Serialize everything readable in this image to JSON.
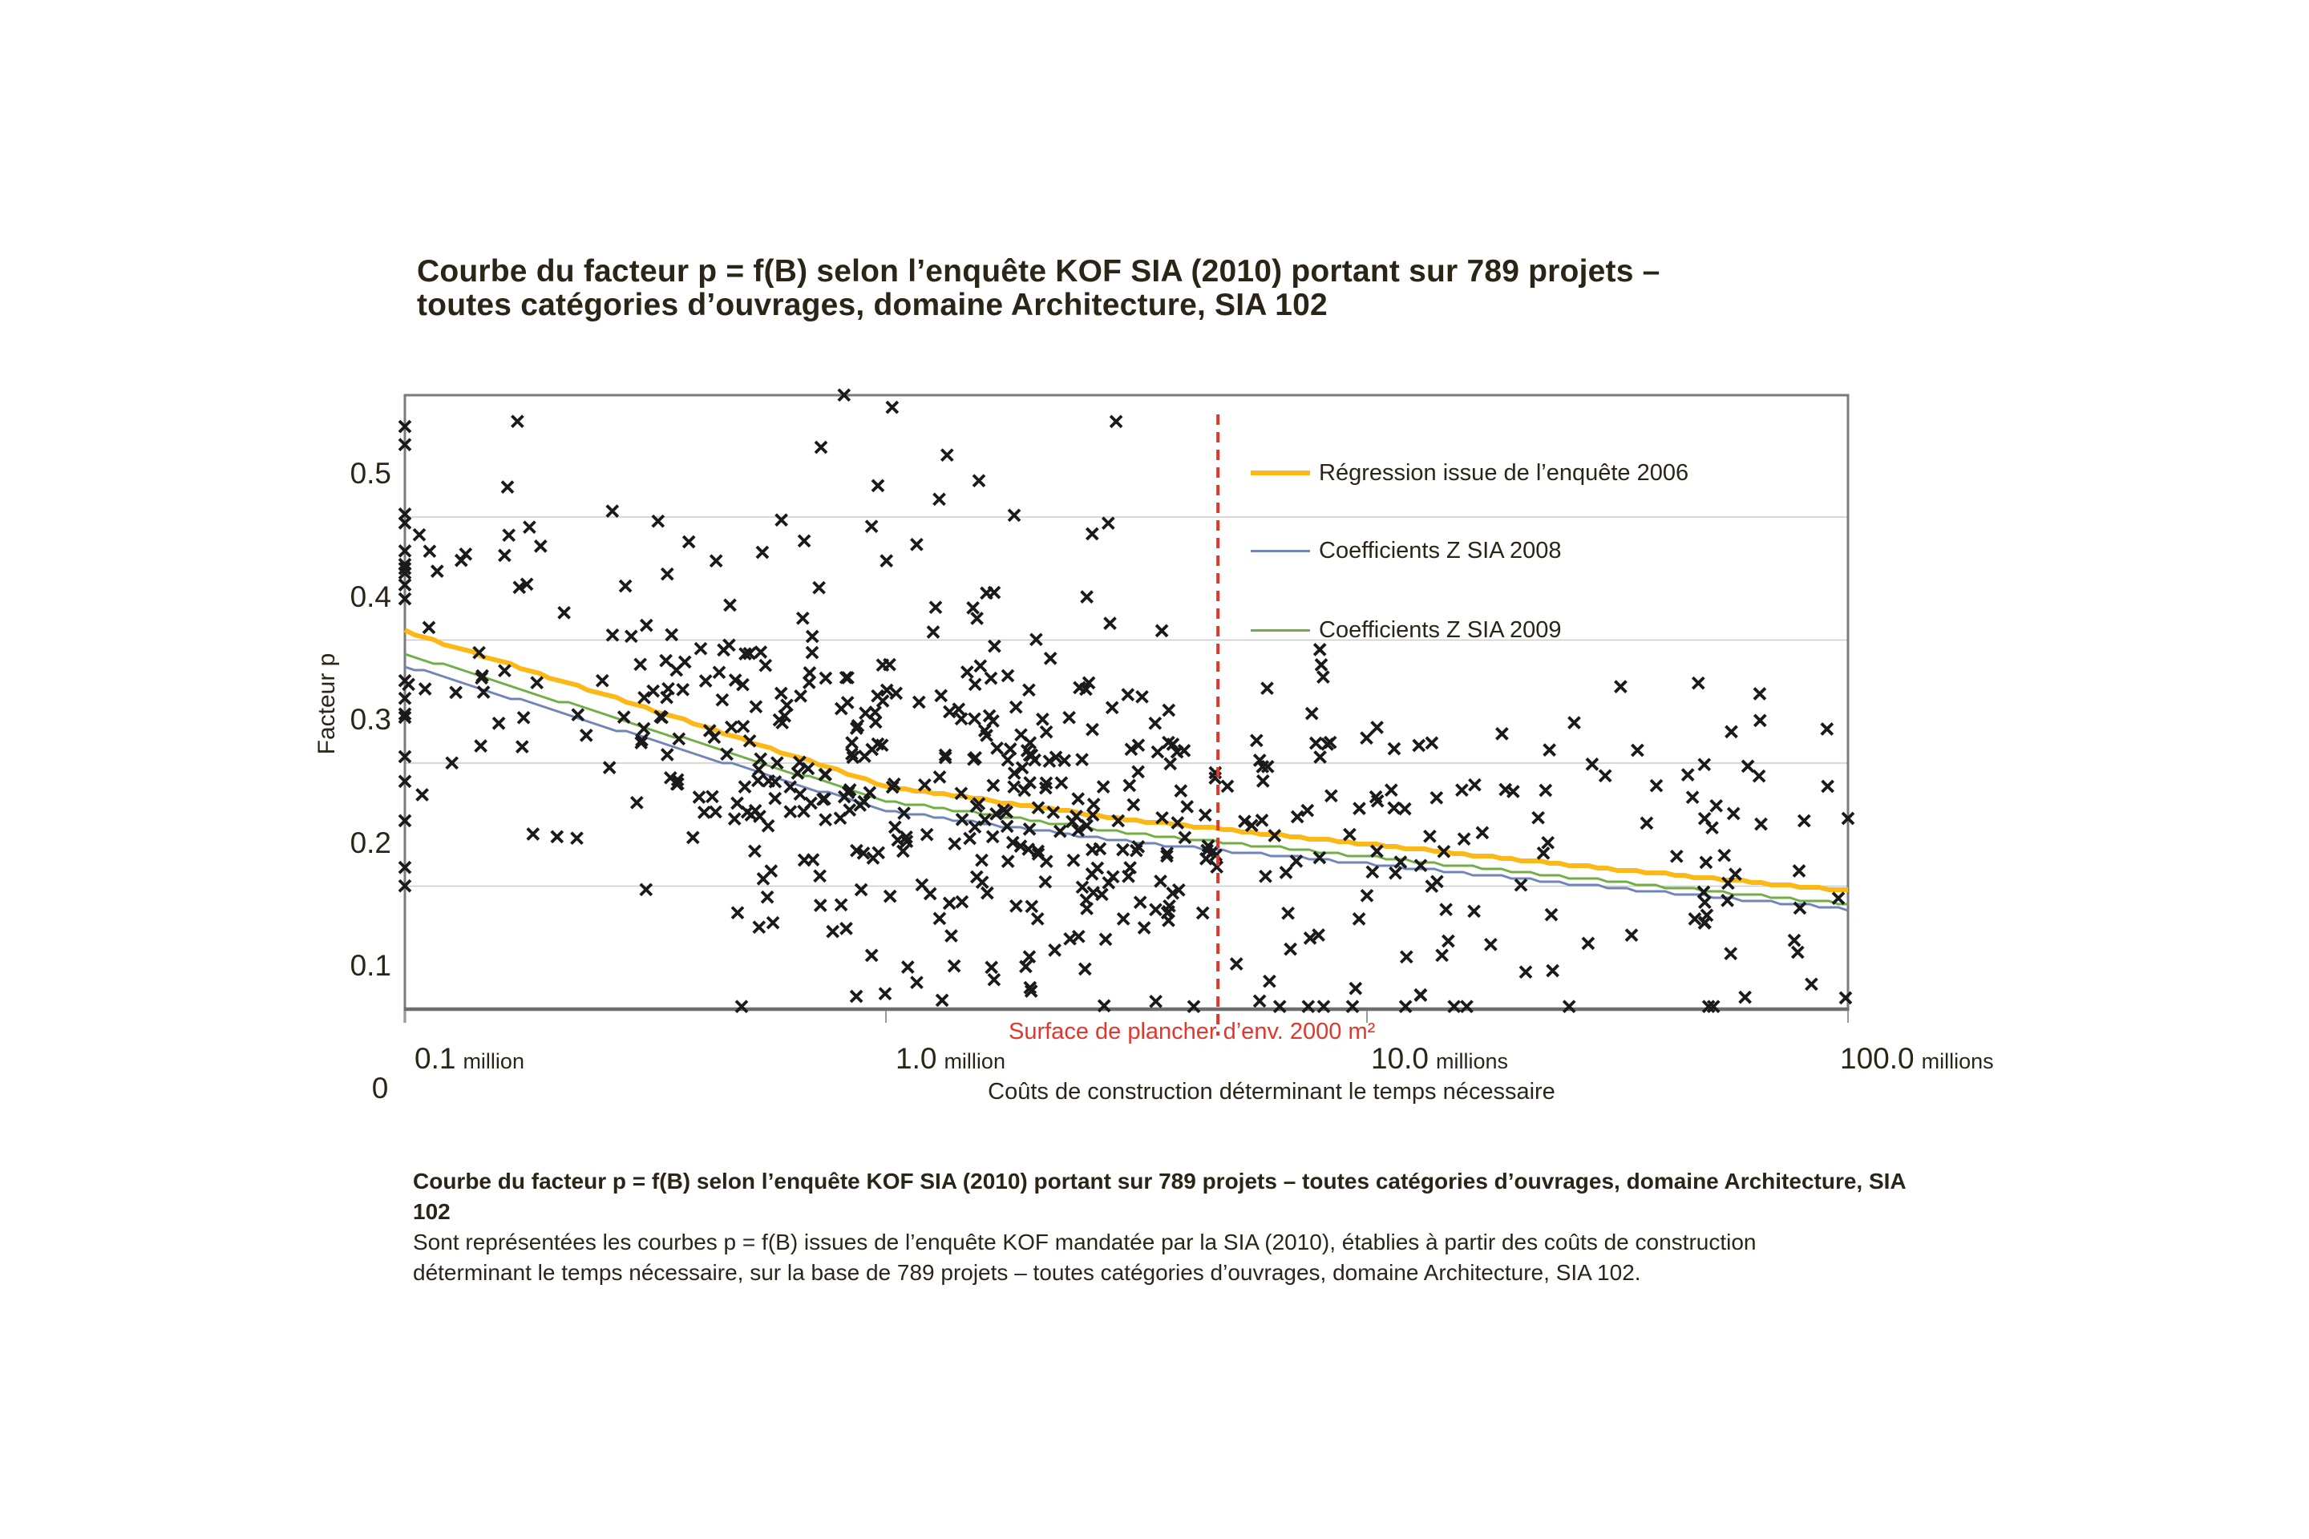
{
  "title": {
    "line1": "Courbe du facteur p = f(B) selon l’enquête KOF SIA (2010) portant sur 789 projets –",
    "line2": "toutes catégories d’ouvrages, domaine Architecture, SIA 102"
  },
  "legend": {
    "items": [
      {
        "label": "Régression issue de l’enquête 2006",
        "color": "#FBB817",
        "thickness": 6
      },
      {
        "label": "Coefficients Z SIA 2008",
        "color": "#7085B8",
        "thickness": 3
      },
      {
        "label": "Coefficients Z SIA 2009",
        "color": "#71AE45",
        "thickness": 3
      }
    ]
  },
  "annotation": {
    "text": "Surface de plancher d’env. 2000 m²",
    "color": "#E5362C"
  },
  "caption": {
    "bold_line": "Courbe du facteur p = f(B) selon l’enquête KOF SIA (2010) portant sur 789 projets – toutes catégories d’ouvrages, domaine Architecture, SIA 102",
    "line2": "Sont représentées les courbes p = f(B) issues de l’enquête KOF mandatée par la SIA (2010), établies à partir des coûts de construction",
    "line3": "déterminant le temps nécessaire, sur la base de 789 projets – toutes catégories d’ouvrages, domaine Architecture, SIA 102."
  },
  "colors": {
    "text": "#2a2517",
    "axis": "#7b7b7b",
    "axis_bottom": "#6e6e6e",
    "gridline": "#cccccc",
    "tick": "#9a9a9a",
    "marker": "#1a1a1a",
    "red_line": "#E5362C"
  },
  "chart_data": {
    "type": "scatter",
    "title": "Courbe du facteur p = f(B) selon l’enquête KOF SIA (2010) portant sur 789 projets – toutes catégories d’ouvrages, domaine Architecture, SIA 102",
    "x_axis": {
      "scale": "log",
      "label": "Coûts de construction déterminant le temps nécessaire",
      "ticks": [
        {
          "value_millions": 0.1,
          "num": "0.1",
          "unit": "million"
        },
        {
          "value_millions": 1.0,
          "num": "1.0",
          "unit": "million"
        },
        {
          "value_millions": 10.0,
          "num": "10.0",
          "unit": "millions"
        },
        {
          "value_millions": 100.0,
          "num": "100.0",
          "unit": "millions"
        }
      ],
      "origin_label": "0",
      "range_millions": [
        0.1,
        100
      ]
    },
    "y_axis": {
      "label": "Facteur p",
      "ticks": [
        {
          "value": 0.5,
          "text": "0.5"
        },
        {
          "value": 0.4,
          "text": "0.4"
        },
        {
          "value": 0.3,
          "text": "0.3"
        },
        {
          "value": 0.2,
          "text": "0.2"
        },
        {
          "value": 0.1,
          "text": "0.1"
        }
      ],
      "grid_values": [
        0.5,
        0.4,
        0.3,
        0.2
      ],
      "range": [
        0.065,
        0.575
      ]
    },
    "vline": {
      "x_millions": 4.9,
      "label": "Surface de plancher d’env. 2000 m²"
    },
    "series": [
      {
        "name": "Régression issue de l’enquête 2006",
        "color": "#FBB817",
        "width": 6,
        "quant": 3,
        "x_millions": [
          0.1,
          0.316,
          1.0,
          3.16,
          10.0,
          31.6,
          100.0
        ],
        "p": [
          0.372,
          0.31,
          0.246,
          0.219,
          0.199,
          0.179,
          0.161
        ]
      },
      {
        "name": "Coefficients Z SIA 2008",
        "color": "#7085B8",
        "width": 3,
        "quant": 4,
        "x_millions": [
          0.1,
          0.316,
          1.0,
          3.16,
          10.0,
          31.6,
          100.0
        ],
        "p": [
          0.344,
          0.285,
          0.226,
          0.201,
          0.183,
          0.164,
          0.146
        ]
      },
      {
        "name": "Coefficients Z SIA 2009",
        "color": "#71AE45",
        "width": 3,
        "quant": 4,
        "x_millions": [
          0.1,
          0.316,
          1.0,
          3.16,
          10.0,
          31.6,
          100.0
        ],
        "p": [
          0.354,
          0.294,
          0.234,
          0.208,
          0.189,
          0.169,
          0.15
        ]
      }
    ],
    "scatter": {
      "n_projects": 789,
      "marker": "x",
      "generated": {
        "seed": 20100789,
        "count": 545,
        "sigma": 0.075,
        "bands": [
          {
            "rate": 0.07,
            "type": "left_edge",
            "zero_rate": 0.35,
            "span": 0.32
          },
          {
            "rate": 0.53,
            "type": "triangular",
            "start": 0.12,
            "span": 0.85
          },
          {
            "rate": 0.28,
            "type": "uniform",
            "start": 1.15,
            "span": 1.0
          },
          {
            "rate": 0.12,
            "type": "uniform",
            "start": 2.15,
            "span": 0.88
          }
        ],
        "outlier_high": {
          "rate": 0.05,
          "min": 0.38,
          "span": 0.17,
          "d_range": [
            0.25,
            1.5
          ]
        },
        "outlier_low": {
          "rate": 0.018,
          "min": 0.072,
          "span": 0.055
        },
        "p_clamp": [
          0.067,
          0.565
        ],
        "d_clamp": [
          0,
          3
        ]
      },
      "notable_points_d_p": [
        [
          0,
          0.46
        ],
        [
          0,
          0.27
        ],
        [
          0,
          0.25
        ],
        [
          0,
          0.218
        ],
        [
          0,
          0.18
        ],
        [
          0,
          0.165
        ],
        [
          0.913,
          0.564
        ],
        [
          1.013,
          0.554
        ],
        [
          0.7,
          0.067
        ],
        [
          1.64,
          0.067
        ],
        [
          1.97,
          0.067
        ],
        [
          2.995,
          0.074
        ],
        [
          2.98,
          0.155
        ],
        [
          2.9,
          0.147
        ],
        [
          2.7,
          0.16
        ],
        [
          2.55,
          0.125
        ],
        [
          1.62,
          0.275
        ],
        [
          1.71,
          0.246
        ],
        [
          2.33,
          0.095
        ],
        [
          0.05,
          0.375
        ]
      ]
    }
  }
}
